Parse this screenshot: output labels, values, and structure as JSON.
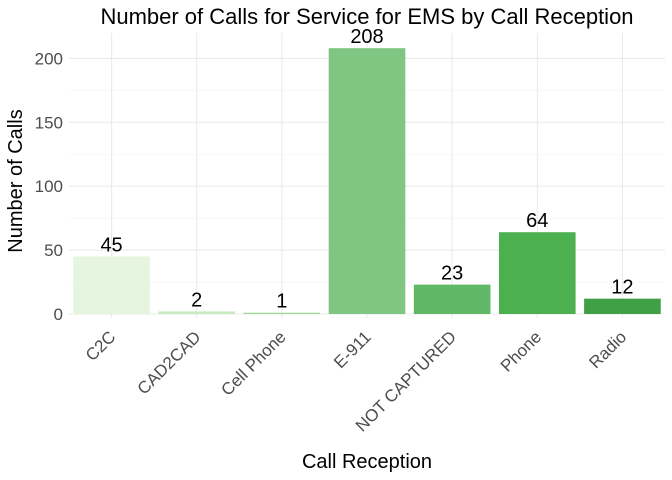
{
  "chart_data": {
    "type": "bar",
    "title": "Number of Calls for Service for EMS by Call Reception",
    "xlabel": "Call Reception",
    "ylabel": "Number of Calls",
    "categories": [
      "C2C",
      "CAD2CAD",
      "Cell Phone",
      "E-911",
      "NOT CAPTURED",
      "Phone",
      "Radio"
    ],
    "values": [
      45,
      2,
      1,
      208,
      23,
      64,
      12
    ],
    "data_labels": [
      "45",
      "2",
      "1",
      "208",
      "23",
      "64",
      "12"
    ],
    "bar_colors": [
      "#e5f5e0",
      "#c7e9c0",
      "#a1d99b",
      "#80c683",
      "#5fb865",
      "#4caf50",
      "#3fa046"
    ],
    "yticks": [
      0,
      50,
      100,
      150,
      200
    ],
    "ytick_labels": [
      "0",
      "50",
      "100",
      "150",
      "200"
    ],
    "ylim": [
      0,
      218
    ],
    "grid": true,
    "legend": "none"
  }
}
